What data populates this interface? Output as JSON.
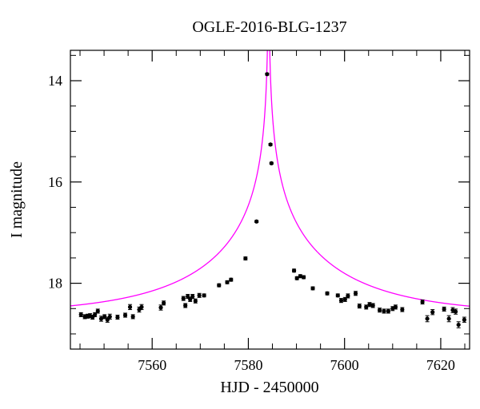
{
  "chart_data": {
    "type": "scatter",
    "title": "OGLE-2016-BLG-1237",
    "xlabel": "HJD - 2450000",
    "ylabel": "I magnitude",
    "xlim": [
      7543,
      7626
    ],
    "ylim": [
      19.3,
      13.4
    ],
    "y_inverted": true,
    "x_ticks": [
      7560,
      7580,
      7600,
      7620
    ],
    "x_tick_labels": [
      "7560",
      "7580",
      "7600",
      "7620"
    ],
    "y_ticks": [
      14,
      16,
      18
    ],
    "y_tick_labels": [
      "14",
      "16",
      "18"
    ],
    "grid": false,
    "legend": "none",
    "colors": {
      "points": "#000000",
      "model": "#ff00ff"
    },
    "series": [
      {
        "kind": "points",
        "x": [
          7545.2,
          7546.0,
          7546.6,
          7547.1,
          7547.6,
          7548.1,
          7548.7,
          7549.4,
          7550.1,
          7550.7,
          7551.2,
          7552.8,
          7554.4,
          7555.4,
          7556.0,
          7557.3,
          7557.8,
          7561.8,
          7562.4,
          7566.5,
          7566.9,
          7567.4,
          7567.9,
          7568.4,
          7569.0,
          7569.8,
          7570.8,
          7573.9,
          7575.6,
          7576.4,
          7579.4,
          7581.7,
          7583.9,
          7584.6,
          7584.8,
          7589.5,
          7590.1,
          7590.8,
          7591.5,
          7593.4,
          7596.4,
          7598.6,
          7599.3,
          7600.1,
          7600.7,
          7602.3,
          7603.1,
          7604.5,
          7605.2,
          7605.9,
          7607.3,
          7608.2,
          7609.1,
          7610.0,
          7610.6,
          7612.0,
          7616.2,
          7617.2,
          7618.3,
          7620.7,
          7621.7,
          7622.5,
          7623.1,
          7623.7,
          7624.9
        ],
        "y": [
          18.62,
          18.66,
          18.65,
          18.64,
          18.67,
          18.62,
          18.55,
          18.7,
          18.66,
          18.72,
          18.66,
          18.67,
          18.63,
          18.47,
          18.66,
          18.52,
          18.47,
          18.48,
          18.39,
          18.3,
          18.44,
          18.26,
          18.32,
          18.26,
          18.35,
          18.24,
          18.24,
          18.04,
          17.98,
          17.93,
          17.51,
          16.78,
          13.87,
          15.26,
          15.63,
          17.75,
          17.9,
          17.86,
          17.88,
          18.1,
          18.2,
          18.24,
          18.34,
          18.32,
          18.25,
          18.2,
          18.45,
          18.47,
          18.42,
          18.44,
          18.53,
          18.55,
          18.55,
          18.5,
          18.47,
          18.52,
          18.37,
          18.7,
          18.57,
          18.51,
          18.7,
          18.53,
          18.56,
          18.82,
          18.72
        ],
        "errors": [
          0.04,
          0.04,
          0.04,
          0.04,
          0.04,
          0.04,
          0.04,
          0.05,
          0.04,
          0.05,
          0.05,
          0.04,
          0.04,
          0.05,
          0.04,
          0.05,
          0.05,
          0.05,
          0.04,
          0.04,
          0.04,
          0.04,
          0.04,
          0.04,
          0.04,
          0.04,
          0.03,
          0.03,
          0.03,
          0.03,
          0.03,
          0.02,
          0.02,
          0.02,
          0.02,
          0.03,
          0.03,
          0.03,
          0.03,
          0.03,
          0.03,
          0.03,
          0.04,
          0.04,
          0.04,
          0.04,
          0.04,
          0.04,
          0.04,
          0.04,
          0.04,
          0.04,
          0.04,
          0.04,
          0.04,
          0.04,
          0.04,
          0.06,
          0.05,
          0.04,
          0.06,
          0.05,
          0.05,
          0.06,
          0.05
        ]
      },
      {
        "kind": "model",
        "t0": 7584.2,
        "base_mag": 18.62,
        "u0": 0.001,
        "tE": 30.5
      }
    ]
  }
}
